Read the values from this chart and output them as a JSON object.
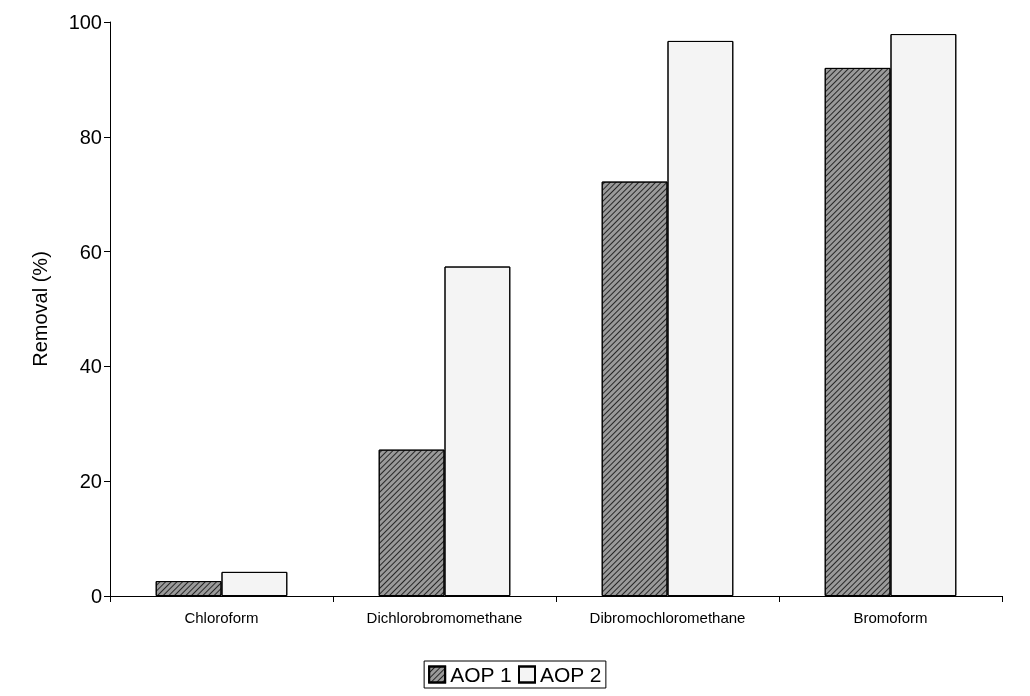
{
  "chart_data": {
    "type": "bar",
    "ylabel": "Removal (%)",
    "categories": [
      "Chloroform",
      "Dichlorobromomethane",
      "Dibromochloromethane",
      "Bromoform"
    ],
    "series": [
      {
        "name": "AOP 1",
        "color": "#9a9a9a",
        "values": [
          2.6,
          25.5,
          72.2,
          92.0
        ]
      },
      {
        "name": "AOP 2",
        "color": "#f4f4f4",
        "values": [
          4.2,
          57.4,
          96.7,
          97.9
        ]
      }
    ],
    "ylim": [
      0,
      100
    ],
    "yticks": [
      0,
      20,
      40,
      60,
      80,
      100
    ],
    "grid": false,
    "legend": "bottom"
  }
}
